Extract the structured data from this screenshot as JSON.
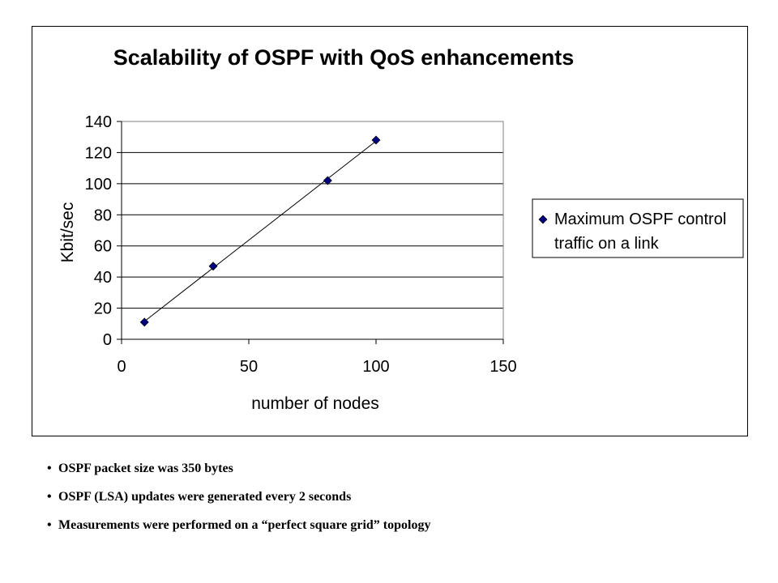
{
  "chart_data": {
    "type": "scatter",
    "title": "Scalability of OSPF with QoS enhancements",
    "xlabel": "number of nodes",
    "ylabel": "Kbit/sec",
    "xlim": [
      0,
      150
    ],
    "ylim": [
      0,
      140
    ],
    "x_ticks": [
      0,
      50,
      100,
      150
    ],
    "y_ticks": [
      0,
      20,
      40,
      60,
      80,
      100,
      120,
      140
    ],
    "grid": "horizontal",
    "legend_position": "right",
    "trendline": "linear",
    "series": [
      {
        "name": "Maximum OSPF control traffic on a link",
        "legend_lines": [
          "Maximum OSPF control",
          "traffic on a link"
        ],
        "marker": "diamond",
        "color": "#00007f",
        "x": [
          9,
          36,
          81,
          100
        ],
        "y": [
          11,
          47,
          102,
          128
        ]
      }
    ]
  },
  "notes": [
    "OSPF packet size was 350 bytes",
    "OSPF (LSA) updates were generated every 2 seconds",
    "Measurements were performed on a “perfect square grid” topology"
  ]
}
